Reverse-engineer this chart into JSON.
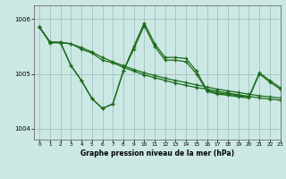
{
  "background_color": "#cce8e4",
  "line_color": "#1a6b1a",
  "xlim": [
    -0.5,
    23
  ],
  "ylim": [
    1003.8,
    1006.25
  ],
  "yticks": [
    1004,
    1005,
    1006
  ],
  "xlabel": "Graphe pression niveau de la mer (hPa)",
  "line1": [
    1005.85,
    1005.58,
    1005.57,
    1005.55,
    1005.48,
    1005.4,
    1005.3,
    1005.22,
    1005.15,
    1005.08,
    1005.02,
    1004.97,
    1004.92,
    1004.88,
    1004.84,
    1004.8,
    1004.76,
    1004.72,
    1004.69,
    1004.66,
    1004.63,
    1004.6,
    1004.58,
    1004.56
  ],
  "line2": [
    1005.85,
    1005.57,
    1005.57,
    1005.15,
    1004.88,
    1004.55,
    1004.37,
    1004.45,
    1005.05,
    1005.5,
    1005.93,
    1005.55,
    1005.3,
    1005.3,
    1005.28,
    1005.05,
    1004.7,
    1004.65,
    1004.63,
    1004.6,
    1004.58,
    1005.02,
    1004.88,
    1004.75
  ],
  "line3": [
    1005.85,
    1005.57,
    1005.57,
    1005.15,
    1004.88,
    1004.55,
    1004.37,
    1004.45,
    1005.05,
    1005.45,
    1005.88,
    1005.5,
    1005.25,
    1005.25,
    1005.22,
    1005.0,
    1004.68,
    1004.63,
    1004.61,
    1004.58,
    1004.56,
    1005.0,
    1004.85,
    1004.72
  ],
  "line4": [
    1005.85,
    1005.58,
    1005.58,
    1005.55,
    1005.45,
    1005.38,
    1005.25,
    1005.2,
    1005.12,
    1005.05,
    1004.98,
    1004.93,
    1004.88,
    1004.83,
    1004.79,
    1004.75,
    1004.72,
    1004.68,
    1004.65,
    1004.62,
    1004.59,
    1004.56,
    1004.54,
    1004.52
  ]
}
